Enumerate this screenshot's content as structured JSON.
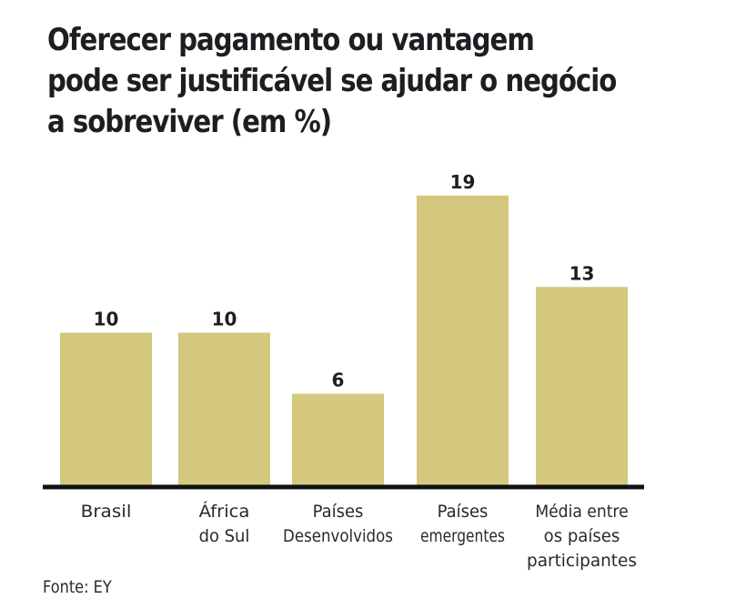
{
  "chart_data": {
    "type": "bar",
    "title": [
      "Oferecer pagamento ou vantagem",
      "pode ser justificável se ajudar o negócio",
      "a sobreviver (em %)"
    ],
    "categories": [
      [
        "Brasil"
      ],
      [
        "África",
        "do Sul"
      ],
      [
        "Países",
        "Desenvolvidos"
      ],
      [
        "Países",
        "emergentes"
      ],
      [
        "Média entre",
        "os países",
        "participantes"
      ]
    ],
    "values": [
      10,
      10,
      6,
      19,
      13
    ],
    "data_labels": [
      "10",
      "10",
      "6",
      "19",
      "13"
    ],
    "xlabel": "",
    "ylabel": "",
    "ylim": [
      0,
      20
    ],
    "grid": false,
    "legend": "none",
    "bar_color": "#d3c87e",
    "axis_color": "#111111",
    "source": "Fonte: EY"
  }
}
